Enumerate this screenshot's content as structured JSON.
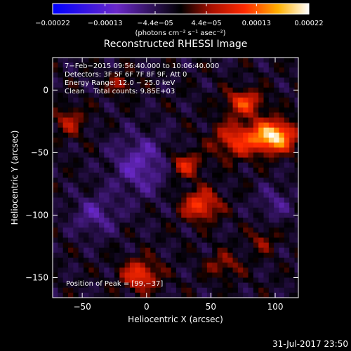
{
  "chart_data": {
    "type": "heatmap",
    "title": "Reconstructed RHESSI Image",
    "xlabel": "Heliocentric X (arcsec)",
    "ylabel": "Heliocentric Y (arcsec)",
    "xlim": [
      -73,
      118
    ],
    "ylim": [
      -166,
      26
    ],
    "x_ticks": [
      -50,
      0,
      50,
      100
    ],
    "x_tick_labels": [
      "−50",
      "0",
      "50",
      "100"
    ],
    "y_ticks": [
      0,
      -50,
      -100,
      -150
    ],
    "y_tick_labels": [
      "0",
      "−50",
      "−100",
      "−150"
    ],
    "grid": false,
    "colorbar": {
      "range": [
        -0.00022,
        0.00022
      ],
      "ticks": [
        -0.00022,
        -0.00013,
        -4.4e-05,
        4.4e-05,
        0.00013,
        0.00022
      ],
      "tick_labels": [
        "−0.00022",
        "−0.00013",
        "−4.4e−05",
        "4.4e−05",
        "0.00013",
        "0.00022"
      ],
      "units": "(photons cm⁻² s⁻¹ asec⁻²)"
    },
    "annotations": [
      "7−Feb−2015 09:56:40.000 to 10:06:40.000",
      "Detectors: 3F 5F 6F 7F 8F 9F, Att 0",
      "Energy Range: 12.0 − 25.0 keV",
      "Clean    Total counts: 9.85E+03"
    ],
    "peak_text": "Position of Peak = [99,−37]",
    "peak": {
      "x": 99,
      "y": -37
    },
    "sources": [
      {
        "x": 99,
        "y": -37,
        "sx": 16,
        "sy": 12,
        "amp": 1.0
      },
      {
        "x": 76,
        "y": -10,
        "sx": 14,
        "sy": 10,
        "amp": 0.55
      },
      {
        "x": 70,
        "y": -40,
        "sx": 18,
        "sy": 14,
        "amp": 0.5
      },
      {
        "x": 42,
        "y": -92,
        "sx": 14,
        "sy": 12,
        "amp": 0.58
      },
      {
        "x": 30,
        "y": -60,
        "sx": 12,
        "sy": 10,
        "amp": 0.45
      },
      {
        "x": -5,
        "y": -148,
        "sx": 14,
        "sy": 12,
        "amp": 0.55
      },
      {
        "x": -60,
        "y": -25,
        "sx": 12,
        "sy": 12,
        "amp": 0.32
      },
      {
        "x": -20,
        "y": 5,
        "sx": 10,
        "sy": 8,
        "amp": 0.3
      },
      {
        "x": 60,
        "y": -140,
        "sx": 14,
        "sy": 10,
        "amp": 0.28
      },
      {
        "x": 90,
        "y": -120,
        "sx": 10,
        "sy": 10,
        "amp": 0.25
      }
    ],
    "negative_regions": [
      {
        "x": -5,
        "y": -60,
        "sx": 22,
        "sy": 24,
        "amp": 0.35
      },
      {
        "x": -40,
        "y": -100,
        "sx": 18,
        "sy": 16,
        "amp": 0.28
      },
      {
        "x": 100,
        "y": -90,
        "sx": 14,
        "sy": 14,
        "amp": 0.22
      }
    ]
  },
  "footer": {
    "date_text": "31-Jul-2017 23:50"
  }
}
